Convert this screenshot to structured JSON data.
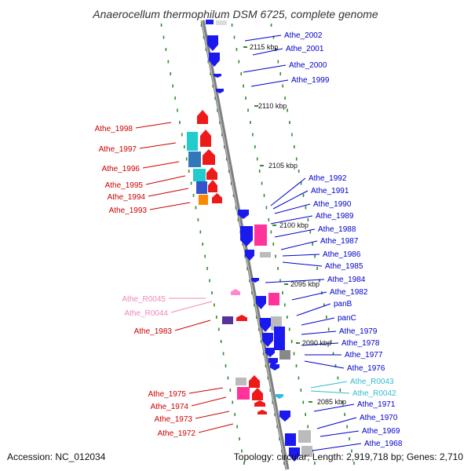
{
  "title": "Anaerocellum thermophilum DSM 6725, complete genome",
  "footer": {
    "accession": "Accession: NC_012034",
    "topology": "Topology: circular; Length: 2,919,718 bp; Genes: 2,710"
  },
  "colors": {
    "backbone": "#8c8c8c",
    "dots": "#2e8b2e",
    "forward_label": "#0000cc",
    "reverse_label": "#cc0000",
    "trna_label_reverse": "#ee88bb",
    "trna_label_forward": "#33bbcc"
  },
  "ticks": [
    "2115 kbp",
    "2110 kbp",
    "2105 kbp",
    "2100 kbp",
    "2095 kbp",
    "2090 kbp",
    "2085 kbp"
  ],
  "labels": {
    "forward": [
      "Athe_2002",
      "Athe_2001",
      "Athe_2000",
      "Athe_1999",
      "Athe_1992",
      "Athe_1991",
      "Athe_1990",
      "Athe_1989",
      "Athe_1988",
      "Athe_1987",
      "Athe_1986",
      "Athe_1985",
      "Athe_1984",
      "Athe_1982",
      "panB",
      "panC",
      "Athe_1979",
      "Athe_1978",
      "Athe_1977",
      "Athe_1976",
      "Athe_R0043",
      "Athe_R0042",
      "Athe_1971",
      "Athe_1970",
      "Athe_1969",
      "Athe_1968"
    ],
    "reverse": [
      "Athe_1998",
      "Athe_1997",
      "Athe_1996",
      "Athe_1995",
      "Athe_1994",
      "Athe_1993",
      "Athe_R0045",
      "Athe_R0044",
      "Athe_1983",
      "Athe_1975",
      "Athe_1974",
      "Athe_1973",
      "Athe_1972"
    ]
  }
}
